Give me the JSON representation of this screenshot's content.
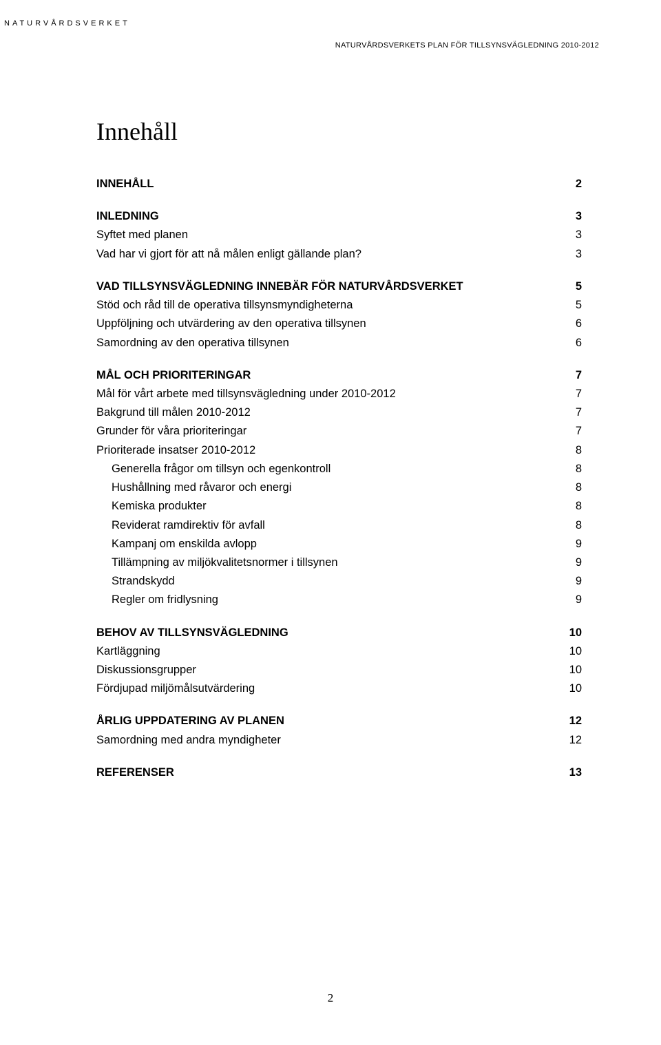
{
  "running_header_left": "NATURVÅRDSVERKET",
  "running_header_right": "NATURVÅRDSVERKETS PLAN FÖR TILLSYNSVÄGLEDNING 2010-2012",
  "title": "Innehåll",
  "page_number": "2",
  "toc": [
    {
      "label": "INNEHÅLL",
      "page": "2",
      "bold": true,
      "gap_after": true
    },
    {
      "label": "INLEDNING",
      "page": "3",
      "bold": true
    },
    {
      "label": "Syftet med planen",
      "page": "3"
    },
    {
      "label": "Vad har vi gjort för att nå målen enligt gällande plan?",
      "page": "3",
      "gap_after": true
    },
    {
      "label": "VAD TILLSYNSVÄGLEDNING INNEBÄR FÖR NATURVÅRDSVERKET",
      "page": "5",
      "bold": true
    },
    {
      "label": "Stöd och råd till de operativa tillsynsmyndigheterna",
      "page": "5"
    },
    {
      "label": "Uppföljning och utvärdering av den operativa tillsynen",
      "page": "6"
    },
    {
      "label": "Samordning av den operativa tillsynen",
      "page": "6",
      "gap_after": true
    },
    {
      "label": "MÅL OCH PRIORITERINGAR",
      "page": "7",
      "bold": true
    },
    {
      "label": "Mål för vårt arbete med tillsynsvägledning under 2010-2012",
      "page": "7"
    },
    {
      "label": "Bakgrund till målen 2010-2012",
      "page": "7"
    },
    {
      "label": "Grunder för våra prioriteringar",
      "page": "7"
    },
    {
      "label": "Prioriterade insatser 2010-2012",
      "page": "8"
    },
    {
      "label": "Generella frågor om tillsyn och egenkontroll",
      "page": "8",
      "indent": 1
    },
    {
      "label": "Hushållning med råvaror och energi",
      "page": "8",
      "indent": 1
    },
    {
      "label": "Kemiska produkter",
      "page": "8",
      "indent": 1
    },
    {
      "label": "Reviderat ramdirektiv för avfall",
      "page": "8",
      "indent": 1
    },
    {
      "label": "Kampanj om enskilda avlopp",
      "page": "9",
      "indent": 1
    },
    {
      "label": "Tillämpning av miljökvalitetsnormer i tillsynen",
      "page": "9",
      "indent": 1
    },
    {
      "label": "Strandskydd",
      "page": "9",
      "indent": 1
    },
    {
      "label": "Regler om fridlysning",
      "page": "9",
      "indent": 1,
      "gap_after": true
    },
    {
      "label": "BEHOV AV TILLSYNSVÄGLEDNING",
      "page": "10",
      "bold": true
    },
    {
      "label": "Kartläggning",
      "page": "10"
    },
    {
      "label": "Diskussionsgrupper",
      "page": "10"
    },
    {
      "label": "Fördjupad miljömålsutvärdering",
      "page": "10",
      "gap_after": true
    },
    {
      "label": "ÅRLIG UPPDATERING AV PLANEN",
      "page": "12",
      "bold": true
    },
    {
      "label": "Samordning med andra myndigheter",
      "page": "12",
      "gap_after": true
    },
    {
      "label": "REFERENSER",
      "page": "13",
      "bold": true
    }
  ]
}
